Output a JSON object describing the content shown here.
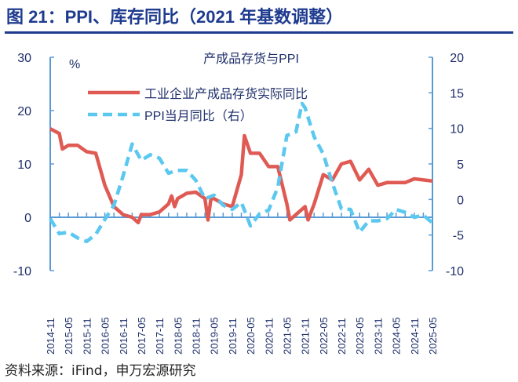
{
  "header": {
    "title": "图 21：PPI、库存同比（2021 年基数调整）"
  },
  "footer": {
    "source": "资料来源：iFind，申万宏源研究"
  },
  "chart_data": {
    "type": "line",
    "title": "产成品存货与PPI",
    "ylabel_left": "%",
    "ylim_left": [
      -10,
      30
    ],
    "yticks_left": [
      -10,
      0,
      10,
      20,
      30
    ],
    "ylim_right": [
      -10,
      20
    ],
    "yticks_right": [
      -10,
      -5,
      0,
      5,
      10,
      15,
      20
    ],
    "xtick_labels": [
      "2014-11",
      "2015-05",
      "2015-11",
      "2016-05",
      "2016-11",
      "2017-05",
      "2017-11",
      "2018-05",
      "2018-11",
      "2019-05",
      "2019-11",
      "2020-05",
      "2020-11",
      "2021-05",
      "2021-11",
      "2022-05",
      "2022-11",
      "2023-05",
      "2023-11",
      "2024-05",
      "2024-11",
      "2025-05"
    ],
    "legend_position": "top-center",
    "colors": {
      "inventory": "#e05a54",
      "ppi": "#5bc8f0",
      "axis": "#5b9bd5",
      "title": "#1f3b8f"
    },
    "series": [
      {
        "name": "工业企业产成品存货实际同比",
        "axis": "left",
        "style": "solid",
        "x": [
          "2014-11",
          "2015-02",
          "2015-03",
          "2015-05",
          "2015-08",
          "2015-11",
          "2016-02",
          "2016-05",
          "2016-08",
          "2016-11",
          "2017-02",
          "2017-04",
          "2017-05",
          "2017-08",
          "2017-11",
          "2018-02",
          "2018-03",
          "2018-04",
          "2018-05",
          "2018-08",
          "2018-11",
          "2019-02",
          "2019-03",
          "2019-04",
          "2019-05",
          "2019-08",
          "2019-11",
          "2020-02",
          "2020-03",
          "2020-05",
          "2020-08",
          "2020-11",
          "2021-02",
          "2021-05",
          "2021-06",
          "2021-08",
          "2021-11",
          "2021-12",
          "2022-02",
          "2022-05",
          "2022-08",
          "2022-11",
          "2023-02",
          "2023-05",
          "2023-08",
          "2023-11",
          "2024-02",
          "2024-05",
          "2024-08",
          "2024-11",
          "2025-02",
          "2025-05"
        ],
        "y": [
          16.6,
          15.7,
          12.8,
          13.5,
          13.5,
          12.3,
          12,
          6,
          2,
          0.5,
          0,
          -1,
          0.5,
          0.5,
          1,
          2.5,
          4,
          2,
          3.5,
          4.5,
          4.7,
          3.5,
          -0.5,
          3.5,
          3.5,
          2.5,
          2,
          8,
          15.3,
          12,
          12,
          9.5,
          9.5,
          2.5,
          -0.5,
          0.5,
          2,
          -0.5,
          2.5,
          8,
          7,
          10,
          10.5,
          7,
          9,
          6,
          6.5,
          6.5,
          6.5,
          7.2,
          7,
          6.8
        ]
      },
      {
        "name": "PPI当月同比（右）",
        "axis": "right",
        "style": "dashed",
        "x": [
          "2014-11",
          "2015-02",
          "2015-05",
          "2015-08",
          "2015-11",
          "2016-02",
          "2016-05",
          "2016-08",
          "2016-11",
          "2017-02",
          "2017-05",
          "2017-08",
          "2017-11",
          "2018-02",
          "2018-05",
          "2018-08",
          "2018-11",
          "2019-02",
          "2019-05",
          "2019-08",
          "2019-11",
          "2020-02",
          "2020-05",
          "2020-08",
          "2020-11",
          "2021-02",
          "2021-05",
          "2021-08",
          "2021-10",
          "2021-11",
          "2022-02",
          "2022-05",
          "2022-08",
          "2022-11",
          "2023-02",
          "2023-05",
          "2023-08",
          "2023-11",
          "2024-02",
          "2024-05",
          "2024-08",
          "2024-11",
          "2025-02",
          "2025-05"
        ],
        "y": [
          -2.7,
          -4.8,
          -4.6,
          -5.4,
          -5.9,
          -4.9,
          -2.8,
          -0.8,
          3.3,
          7.8,
          5.5,
          6.3,
          5.8,
          3.7,
          4.1,
          4.1,
          2.7,
          0.1,
          0.6,
          -0.8,
          -1.4,
          -0.4,
          -3.7,
          -2.0,
          -1.5,
          1.7,
          9.0,
          9.5,
          13.5,
          12.9,
          8.8,
          6.4,
          2.3,
          -1.3,
          -1.4,
          -4.6,
          -3.0,
          -3.0,
          -2.7,
          -1.4,
          -1.8,
          -2.5,
          -2.2,
          -3.3
        ]
      }
    ]
  }
}
